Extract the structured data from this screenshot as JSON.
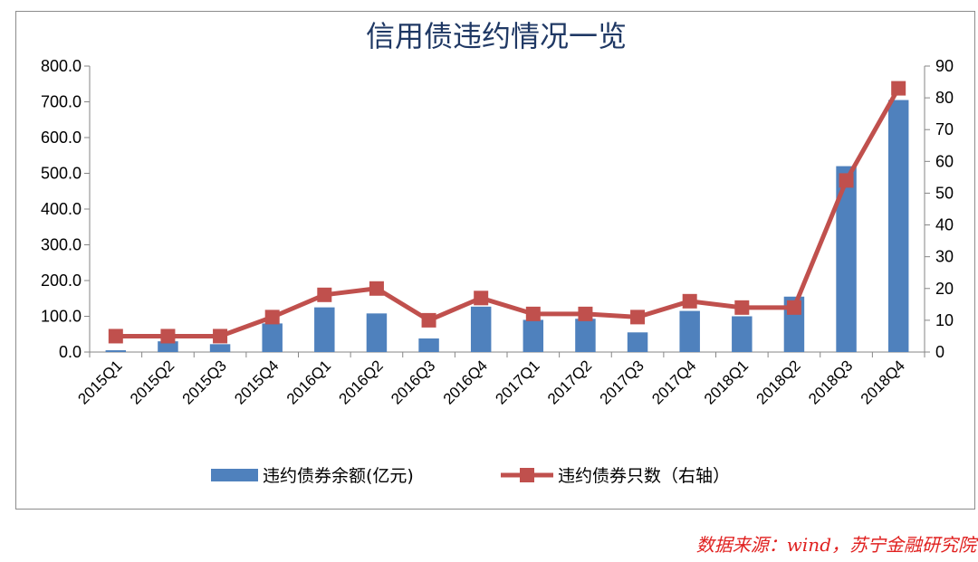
{
  "chart_data": {
    "type": "bar",
    "title": "信用债违约情况一览",
    "categories": [
      "2015Q1",
      "2015Q2",
      "2015Q3",
      "2015Q4",
      "2016Q1",
      "2016Q2",
      "2016Q3",
      "2016Q4",
      "2017Q1",
      "2017Q2",
      "2017Q3",
      "2017Q4",
      "2018Q1",
      "2018Q2",
      "2018Q3",
      "2018Q4"
    ],
    "series": [
      {
        "name": "违约债券余额(亿元)",
        "type": "bar",
        "axis": "left",
        "color": "#4f81bd",
        "values": [
          5,
          30,
          22,
          80,
          125,
          108,
          38,
          127,
          90,
          93,
          55,
          115,
          100,
          155,
          520,
          705
        ]
      },
      {
        "name": "违约债券只数（右轴）",
        "type": "line",
        "axis": "right",
        "color": "#c0504d",
        "values": [
          5,
          5,
          5,
          11,
          18,
          20,
          10,
          17,
          12,
          12,
          11,
          16,
          14,
          14,
          54,
          83
        ]
      }
    ],
    "y_left": {
      "min": 0,
      "max": 800,
      "step": 100,
      "tick_labels": [
        "0.0",
        "100.0",
        "200.0",
        "300.0",
        "400.0",
        "500.0",
        "600.0",
        "700.0",
        "800.0"
      ]
    },
    "y_right": {
      "min": 0,
      "max": 90,
      "step": 10,
      "tick_labels": [
        "0",
        "10",
        "20",
        "30",
        "40",
        "50",
        "60",
        "70",
        "80",
        "90"
      ]
    },
    "grid": false,
    "legend_position": "bottom"
  },
  "source_note": "数据来源：wind，苏宁金融研究院"
}
